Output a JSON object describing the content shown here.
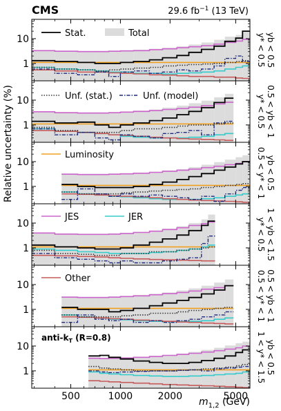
{
  "header": {
    "experiment": "CMS",
    "luminosity": "29.6 fb",
    "lumi_exponent": "−1",
    "energy": "(13 TeV)"
  },
  "ylabel": "Relative uncertainty (%)",
  "xlabel_var": "m",
  "xlabel_sub": "1,2",
  "xlabel_unit": "(GeV)",
  "algo_label": {
    "base": "anti-k",
    "sub": "T",
    "tail": " (R=0.8)"
  },
  "colors": {
    "stat": "#000000",
    "total": "#dcdcdc",
    "unf_stat": "#333333",
    "unf_model": "#1c2a80",
    "luminosity": "#f0a020",
    "jes": "#cc66cc",
    "jer": "#33cccc",
    "other": "#c65a5a"
  },
  "chart_data": {
    "type": "line",
    "xscale": "log",
    "yscale": "log",
    "xlim": [
      290,
      6100
    ],
    "ylim": [
      0.2,
      60
    ],
    "x_ticks": [
      "500",
      "1000",
      "2000",
      "5000"
    ],
    "y_ticks": [
      "1",
      "10"
    ],
    "legend": [
      {
        "key": "stat",
        "label": "Stat.",
        "panel": 0,
        "style": "line"
      },
      {
        "key": "total",
        "label": "Total",
        "panel": 0,
        "style": "band"
      },
      {
        "key": "unf_stat",
        "label": "Unf. (stat.)",
        "panel": 1,
        "style": "dotted"
      },
      {
        "key": "unf_model",
        "label": "Unf. (model)",
        "panel": 1,
        "style": "dashdot"
      },
      {
        "key": "luminosity",
        "label": "Luminosity",
        "panel": 2,
        "style": "line"
      },
      {
        "key": "jes",
        "label": "JES",
        "panel": 3,
        "style": "line"
      },
      {
        "key": "jer",
        "label": "JER",
        "panel": 3,
        "style": "line"
      },
      {
        "key": "other",
        "label": "Other",
        "panel": 4,
        "style": "line"
      }
    ],
    "panels": [
      {
        "rap_top": "y* < 0.5",
        "rap_bottom": "yb < 0.5",
        "edges": [
          290,
          400,
          550,
          700,
          850,
          1000,
          1200,
          1500,
          1800,
          2200,
          2600,
          3100,
          3700,
          4300,
          5000,
          5500,
          6100
        ],
        "series": {
          "total": [
            3.5,
            3.3,
            3.2,
            3.2,
            3.3,
            3.4,
            3.6,
            3.9,
            4.3,
            4.9,
            5.8,
            7.0,
            9.0,
            12.0,
            14.0,
            20.0
          ],
          "stat": [
            1.3,
            1.2,
            1.1,
            1.0,
            1.0,
            1.1,
            1.2,
            1.4,
            1.7,
            2.1,
            2.8,
            3.7,
            5.0,
            7.8,
            10.5,
            20.0
          ],
          "unf_stat": [
            0.7,
            0.6,
            0.55,
            0.5,
            0.55,
            0.6,
            0.65,
            0.7,
            0.8,
            0.85,
            0.9,
            0.95,
            1.0,
            1.1,
            1.2,
            1.3
          ],
          "unf_model": [
            0.6,
            0.4,
            0.35,
            0.45,
            0.3,
            0.45,
            0.5,
            0.4,
            0.45,
            0.55,
            0.5,
            0.6,
            0.8,
            1.6,
            2.0,
            1.2
          ],
          "luminosity": [
            1.1,
            1.1,
            1.1,
            1.1,
            1.1,
            1.1,
            1.1,
            1.1,
            1.1,
            1.1,
            1.1,
            1.1,
            1.1,
            1.1,
            1.1,
            1.1
          ],
          "jes": [
            3.3,
            3.1,
            3.0,
            3.0,
            3.1,
            3.2,
            3.3,
            3.6,
            3.9,
            4.3,
            4.7,
            5.2,
            6.0,
            7.0,
            8.0,
            9.5
          ],
          "jer": [
            0.7,
            0.6,
            0.55,
            0.5,
            0.45,
            0.45,
            0.4,
            0.4,
            0.38,
            0.4,
            0.42,
            0.45,
            0.5,
            0.6,
            0.7,
            0.8
          ],
          "other": [
            0.55,
            0.5,
            0.45,
            0.45,
            0.42,
            0.4,
            0.38,
            0.35,
            0.34,
            0.32,
            0.3,
            0.3,
            0.28,
            0.28,
            0.26,
            0.25
          ]
        }
      },
      {
        "rap_top": "y* < 0.5",
        "rap_bottom": "0.5 < yb < 1",
        "edges": [
          290,
          400,
          550,
          700,
          850,
          1000,
          1200,
          1500,
          1800,
          2200,
          2600,
          3100,
          3700,
          4300,
          4850
        ],
        "series": {
          "total": [
            3.6,
            3.3,
            3.2,
            3.2,
            3.3,
            3.5,
            3.8,
            4.2,
            5.0,
            6.0,
            7.5,
            9.5,
            13.0,
            18.0
          ],
          "stat": [
            1.4,
            1.2,
            1.3,
            1.0,
            0.8,
            1.0,
            1.2,
            1.5,
            1.9,
            2.6,
            3.5,
            5.0,
            8.0,
            12.0
          ],
          "unf_stat": [
            0.8,
            0.6,
            0.5,
            0.5,
            0.5,
            0.6,
            0.7,
            0.7,
            0.8,
            0.9,
            1.0,
            1.0,
            1.1,
            1.2
          ],
          "unf_model": [
            0.7,
            0.4,
            0.5,
            0.3,
            0.25,
            0.4,
            0.35,
            0.3,
            0.45,
            0.5,
            0.6,
            0.4,
            1.2,
            1.4
          ],
          "luminosity": [
            1.1,
            1.1,
            1.1,
            1.1,
            1.1,
            1.1,
            1.1,
            1.1,
            1.1,
            1.1,
            1.1,
            1.1,
            1.1,
            1.1
          ],
          "jes": [
            3.4,
            3.1,
            3.0,
            3.0,
            3.1,
            3.3,
            3.5,
            3.8,
            4.2,
            4.6,
            5.2,
            6.0,
            7.0,
            8.2
          ],
          "jer": [
            0.7,
            0.55,
            0.5,
            0.45,
            0.4,
            0.35,
            0.32,
            0.3,
            0.3,
            0.3,
            0.32,
            0.35,
            0.4,
            0.45
          ],
          "other": [
            0.6,
            0.55,
            0.5,
            0.45,
            0.4,
            0.38,
            0.35,
            0.32,
            0.3,
            0.28,
            0.27,
            0.26,
            0.25,
            0.24
          ]
        }
      },
      {
        "rap_top": "0.5 < y* < 1",
        "rap_bottom": "yb < 0.5",
        "edges": [
          440,
          550,
          700,
          850,
          1000,
          1200,
          1500,
          1800,
          2200,
          2600,
          3100,
          3700,
          4300,
          5000,
          5500,
          6100
        ],
        "series": {
          "total": [
            3.3,
            3.2,
            3.2,
            3.3,
            3.4,
            3.6,
            3.9,
            4.4,
            5.0,
            6.0,
            7.5,
            9.5,
            12.0,
            15.0,
            18.0
          ],
          "stat": [
            1.2,
            1.0,
            0.9,
            0.9,
            0.9,
            1.0,
            1.2,
            1.5,
            1.9,
            2.5,
            3.3,
            4.5,
            6.0,
            8.0,
            10.0
          ],
          "unf_stat": [
            0.6,
            0.5,
            0.5,
            0.5,
            0.55,
            0.6,
            0.65,
            0.7,
            0.75,
            0.8,
            0.9,
            1.0,
            1.1,
            1.2,
            1.3
          ],
          "unf_model": [
            0.3,
            0.8,
            0.5,
            0.4,
            0.5,
            0.4,
            0.45,
            0.4,
            0.35,
            0.3,
            0.4,
            0.25,
            0.5,
            0.7,
            0.9
          ],
          "luminosity": [
            1.1,
            1.1,
            1.1,
            1.1,
            1.1,
            1.1,
            1.1,
            1.1,
            1.1,
            1.1,
            1.1,
            1.1,
            1.1,
            1.1,
            1.1
          ],
          "jes": [
            3.1,
            3.0,
            3.0,
            3.1,
            3.2,
            3.4,
            3.7,
            4.1,
            4.5,
            5.0,
            5.7,
            6.5,
            7.5,
            8.5,
            10.0
          ],
          "jer": [
            0.6,
            0.5,
            0.45,
            0.4,
            0.38,
            0.35,
            0.32,
            0.3,
            0.3,
            0.3,
            0.32,
            0.35,
            0.4,
            0.45,
            0.5
          ],
          "other": [
            0.5,
            0.48,
            0.45,
            0.42,
            0.4,
            0.38,
            0.35,
            0.32,
            0.3,
            0.28,
            0.27,
            0.26,
            0.25,
            0.24,
            0.23
          ]
        }
      },
      {
        "rap_top": "y* < 0.5",
        "rap_bottom": "1 < yb < 1.5",
        "edges": [
          290,
          400,
          550,
          700,
          850,
          1000,
          1200,
          1500,
          1800,
          2200,
          2600,
          3100,
          3400,
          3750
        ],
        "series": {
          "total": [
            4.2,
            3.8,
            3.7,
            3.7,
            3.8,
            4.0,
            4.4,
            5.0,
            6.0,
            7.5,
            10.0,
            14.0,
            22.0
          ],
          "stat": [
            1.3,
            1.1,
            1.0,
            0.9,
            0.9,
            1.0,
            1.3,
            1.7,
            2.3,
            3.3,
            5.0,
            8.0,
            12.0
          ],
          "unf_stat": [
            0.8,
            0.6,
            0.55,
            0.5,
            0.5,
            0.6,
            0.6,
            0.7,
            0.7,
            0.8,
            0.9,
            1.0,
            1.1
          ],
          "unf_model": [
            0.6,
            0.4,
            0.35,
            0.3,
            0.25,
            0.3,
            0.25,
            0.25,
            0.3,
            0.35,
            0.4,
            1.5,
            3.0
          ],
          "luminosity": [
            1.1,
            1.1,
            1.1,
            1.1,
            1.1,
            1.1,
            1.1,
            1.1,
            1.1,
            1.1,
            1.1,
            1.1,
            1.1
          ],
          "jes": [
            4.0,
            3.6,
            3.5,
            3.5,
            3.6,
            3.8,
            4.2,
            4.7,
            5.5,
            6.5,
            8.0,
            9.5,
            11.0
          ],
          "jer": [
            0.9,
            0.8,
            0.7,
            0.65,
            0.6,
            0.6,
            0.6,
            0.65,
            0.7,
            0.8,
            0.9,
            1.1,
            1.3
          ],
          "other": [
            0.5,
            0.48,
            0.45,
            0.43,
            0.4,
            0.38,
            0.36,
            0.34,
            0.33,
            0.32,
            0.31,
            0.3,
            0.3
          ]
        }
      },
      {
        "rap_top": "0.5 < y* < 1",
        "rap_bottom": "0.5 < yb < 1",
        "edges": [
          440,
          550,
          700,
          850,
          1000,
          1200,
          1500,
          1800,
          2200,
          2600,
          3100,
          3700,
          4300,
          4850
        ],
        "series": {
          "total": [
            3.3,
            3.2,
            3.2,
            3.3,
            3.5,
            3.8,
            4.2,
            4.8,
            5.8,
            7.0,
            9.0,
            12.0,
            16.0
          ],
          "stat": [
            1.2,
            1.0,
            1.0,
            0.8,
            0.9,
            1.1,
            1.4,
            1.8,
            2.3,
            3.0,
            4.2,
            6.0,
            9.0
          ],
          "unf_stat": [
            0.6,
            0.5,
            0.5,
            0.5,
            0.55,
            0.6,
            0.7,
            0.7,
            0.8,
            0.9,
            1.0,
            1.1,
            1.2
          ],
          "unf_model": [
            0.3,
            0.6,
            0.4,
            0.35,
            0.4,
            0.3,
            0.35,
            0.3,
            0.35,
            0.4,
            0.5,
            0.6,
            0.8
          ],
          "luminosity": [
            1.1,
            1.1,
            1.1,
            1.1,
            1.1,
            1.1,
            1.1,
            1.1,
            1.1,
            1.1,
            1.1,
            1.1,
            1.1
          ],
          "jes": [
            3.1,
            3.0,
            3.0,
            3.1,
            3.3,
            3.5,
            3.9,
            4.3,
            4.8,
            5.5,
            6.5,
            7.5,
            9.0
          ],
          "jer": [
            0.6,
            0.5,
            0.45,
            0.4,
            0.38,
            0.35,
            0.33,
            0.32,
            0.32,
            0.33,
            0.35,
            0.4,
            0.45
          ],
          "other": [
            0.5,
            0.48,
            0.45,
            0.42,
            0.4,
            0.37,
            0.35,
            0.33,
            0.31,
            0.3,
            0.28,
            0.27,
            0.26
          ]
        }
      },
      {
        "rap_top": "1 < y* < 1.5",
        "rap_bottom": "yb < 0.5",
        "edges": [
          640,
          750,
          850,
          1000,
          1200,
          1500,
          1800,
          2200,
          2600,
          3100,
          3700,
          4300,
          5000,
          5500,
          6100
        ],
        "series": {
          "total": [
            3.5,
            3.4,
            3.4,
            3.5,
            3.7,
            4.0,
            4.4,
            5.0,
            5.8,
            7.0,
            8.5,
            10.5,
            13.0,
            15.0
          ],
          "stat": [
            4.0,
            4.2,
            3.5,
            3.0,
            2.5,
            2.2,
            2.0,
            2.0,
            2.2,
            2.6,
            3.2,
            4.0,
            5.5,
            7.0
          ],
          "unf_stat": [
            1.5,
            1.3,
            1.2,
            1.1,
            1.0,
            1.0,
            1.0,
            1.05,
            1.1,
            1.2,
            1.3,
            1.4,
            1.6,
            1.8
          ],
          "unf_model": [
            1.0,
            0.9,
            0.85,
            0.9,
            0.95,
            1.0,
            1.0,
            1.05,
            1.1,
            1.0,
            1.2,
            1.3,
            1.4,
            1.5
          ],
          "luminosity": [
            1.1,
            1.1,
            1.1,
            1.1,
            1.1,
            1.1,
            1.1,
            1.1,
            1.1,
            1.1,
            1.1,
            1.1,
            1.1,
            1.1
          ],
          "jes": [
            3.2,
            3.1,
            3.2,
            3.3,
            3.5,
            3.8,
            4.2,
            4.6,
            5.1,
            5.7,
            6.5,
            7.5,
            8.5,
            10.0
          ],
          "jer": [
            0.9,
            0.8,
            0.75,
            0.7,
            0.65,
            0.62,
            0.6,
            0.6,
            0.62,
            0.65,
            0.7,
            0.75,
            0.8,
            0.9
          ],
          "other": [
            0.4,
            0.38,
            0.36,
            0.34,
            0.32,
            0.3,
            0.28,
            0.27,
            0.26,
            0.25,
            0.24,
            0.23,
            0.22,
            0.21
          ]
        }
      }
    ]
  }
}
